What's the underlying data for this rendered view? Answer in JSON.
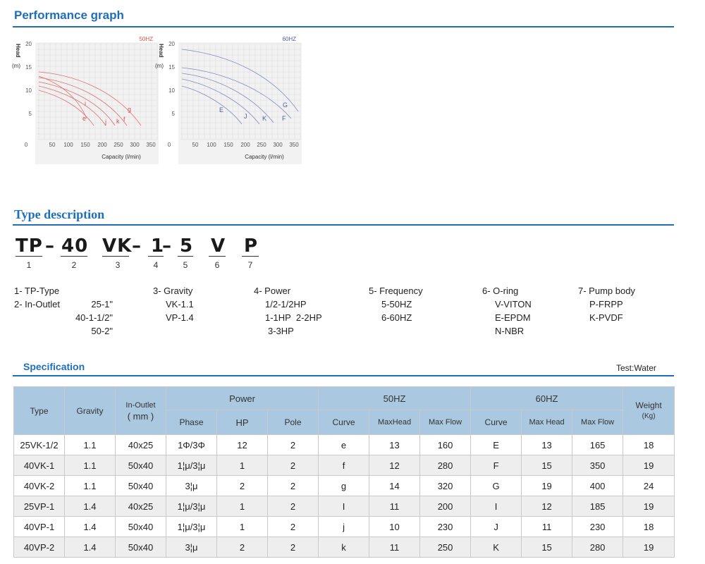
{
  "performance": {
    "title": "Performance graph",
    "charts": [
      {
        "freq_label": "50HZ",
        "color": "#d9534f",
        "curve_labels": [
          "i",
          "g",
          "e",
          "j",
          "k",
          "f"
        ],
        "x_label": "Capacity (l/min)",
        "y_label_word": "Head",
        "y_unit": "(m)",
        "x_ticks": [
          "0",
          "50",
          "100",
          "150",
          "200",
          "250",
          "300",
          "350"
        ],
        "y_ticks": [
          "20",
          "15",
          "10",
          "5"
        ]
      },
      {
        "freq_label": "60HZ",
        "color": "#4a5ea8",
        "curve_labels": [
          "G",
          "E",
          "J",
          "K",
          "F"
        ],
        "x_label": "Capacity (l/min)",
        "y_label_word": "Head",
        "y_unit": "(m)",
        "x_ticks": [
          "0",
          "50",
          "100",
          "150",
          "200",
          "250",
          "300",
          "350"
        ],
        "y_ticks": [
          "20",
          "15",
          "10",
          "5"
        ]
      }
    ]
  },
  "type_description": {
    "title": "Type description",
    "code": {
      "c1": "TP",
      "d1": "–",
      "c2": "40",
      "c3": "VK",
      "d2": "–",
      "c4": "1",
      "d3": "–",
      "c5": "5",
      "c6": "V",
      "c7": "P"
    },
    "numbers": [
      "1",
      "2",
      "3",
      "4",
      "5",
      "6",
      "7"
    ],
    "legend": {
      "l1": "1- TP-Type",
      "l2": "2- In-Outlet",
      "inlet": [
        "25-1\"",
        "40-1-1/2\"",
        "50-2\""
      ],
      "gravity": [
        "3- Gravity",
        "VK-1.1",
        "VP-1.4"
      ],
      "power": [
        "4- Power",
        "1/2-1/2HP",
        "1-1HP  2-2HP",
        "3-3HP"
      ],
      "frequency": [
        "5- Frequency",
        "5-50HZ",
        "6-60HZ"
      ],
      "oring": [
        "6- O-ring",
        "V-VITON",
        "E-EPDM",
        "N-NBR"
      ],
      "body": [
        "7- Pump body",
        "P-FRPP",
        "K-PVDF"
      ]
    }
  },
  "specification": {
    "title": "Specification",
    "test_note": "Test:Water",
    "headers": {
      "type": "Type",
      "gravity": "Gravity",
      "inoutlet_1": "In-Outlet",
      "inoutlet_2": "( mm )",
      "power": "Power",
      "hz50": "50HZ",
      "hz60": "60HZ",
      "weight_1": "Weight",
      "weight_2": "(Kg)",
      "phase": "Phase",
      "hp": "HP",
      "pole": "Pole",
      "curve50": "Curve",
      "maxhead50": "MaxHead",
      "maxflow50": "Max Flow",
      "curve60": "Curve",
      "maxhead60": "Max Head",
      "maxflow60": "Max Flow"
    },
    "rows": [
      [
        "25VK-1/2",
        "1.1",
        "40x25",
        "1Φ/3Φ",
        "12",
        "2",
        "e",
        "13",
        "160",
        "E",
        "13",
        "165",
        "18"
      ],
      [
        "40VK-1",
        "1.1",
        "50x40",
        "1¦μ/3¦μ",
        "1",
        "2",
        "f",
        "12",
        "280",
        "F",
        "15",
        "350",
        "19"
      ],
      [
        "40VK-2",
        "1.1",
        "50x40",
        "3¦μ",
        "2",
        "2",
        "g",
        "14",
        "320",
        "G",
        "19",
        "400",
        "24"
      ],
      [
        "25VP-1",
        "1.4",
        "40x25",
        "1¦μ/3¦μ",
        "1",
        "2",
        "I",
        "11",
        "200",
        "I",
        "12",
        "185",
        "19"
      ],
      [
        "40VP-1",
        "1.4",
        "50x40",
        "1¦μ/3¦μ",
        "1",
        "2",
        "j",
        "10",
        "230",
        "J",
        "11",
        "230",
        "18"
      ],
      [
        "40VP-2",
        "1.4",
        "50x40",
        "3¦μ",
        "2",
        "2",
        "k",
        "11",
        "250",
        "K",
        "15",
        "280",
        "19"
      ]
    ]
  }
}
